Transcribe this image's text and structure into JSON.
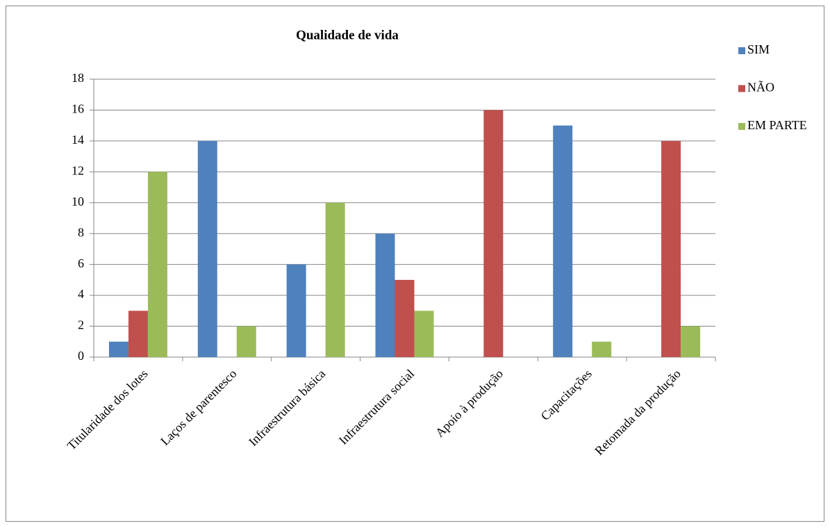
{
  "chart_data": {
    "type": "bar",
    "title": "Qualidade de vida",
    "categories": [
      "Titularidade dos lotes",
      "Laços de parentesco",
      "Infraestrutura básica",
      "Infraestrutura social",
      "Apoio à produção",
      "Capacitações",
      "Retomada da produção"
    ],
    "series": [
      {
        "name": "SIM",
        "color": "#4f81bd",
        "values": [
          1,
          14,
          6,
          8,
          0,
          15,
          0
        ]
      },
      {
        "name": "NÃO",
        "color": "#c0504d",
        "values": [
          3,
          0,
          0,
          5,
          16,
          0,
          14
        ]
      },
      {
        "name": "EM PARTE",
        "color": "#9bbb59",
        "values": [
          12,
          2,
          10,
          3,
          0,
          1,
          2
        ]
      }
    ],
    "ylim": [
      0,
      18
    ],
    "yticks": [
      0,
      2,
      4,
      6,
      8,
      10,
      12,
      14,
      16,
      18
    ],
    "grid": true,
    "legend": "right"
  }
}
